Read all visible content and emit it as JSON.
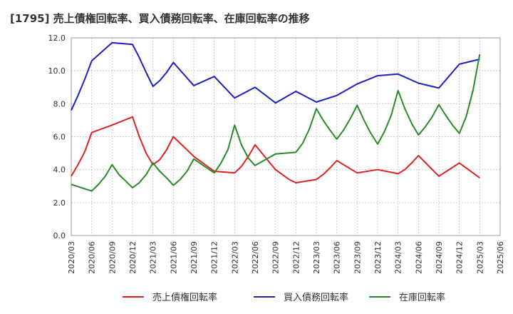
{
  "chart_data": {
    "type": "line",
    "title": "[1795]  売上債権回転率、買入債務回転率、在庫回転率の推移",
    "xlabel": "",
    "ylabel": "",
    "ylim": [
      0,
      12
    ],
    "yticks": [
      "0.0",
      "2.0",
      "4.0",
      "6.0",
      "8.0",
      "10.0",
      "12.0"
    ],
    "x": [
      "2020/03",
      "2020/06",
      "2020/09",
      "2020/12",
      "2021/03",
      "2021/06",
      "2021/09",
      "2021/12",
      "2022/03",
      "2022/06",
      "2022/09",
      "2022/12",
      "2023/03",
      "2023/06",
      "2023/09",
      "2023/12",
      "2024/03",
      "2024/06",
      "2024/09",
      "2024/12",
      "2025/03",
      "2025/06"
    ],
    "legend_position": "bottom",
    "series": [
      {
        "name": "売上債権回転率",
        "color": "#dd2222",
        "points": [
          [
            0,
            3.6
          ],
          [
            0.333,
            4.3
          ],
          [
            0.667,
            5.1
          ],
          [
            1,
            6.25
          ],
          [
            2,
            6.7
          ],
          [
            3,
            7.2
          ],
          [
            3.333,
            6.0
          ],
          [
            3.667,
            5.0
          ],
          [
            4,
            4.3
          ],
          [
            4.333,
            4.6
          ],
          [
            4.667,
            5.2
          ],
          [
            5,
            6.0
          ],
          [
            6,
            4.8
          ],
          [
            7,
            3.9
          ],
          [
            8,
            3.8
          ],
          [
            8.333,
            4.2
          ],
          [
            8.667,
            4.8
          ],
          [
            9,
            5.5
          ],
          [
            10,
            4.0
          ],
          [
            10.333,
            3.7
          ],
          [
            10.667,
            3.4
          ],
          [
            11,
            3.2
          ],
          [
            12,
            3.4
          ],
          [
            12.333,
            3.7
          ],
          [
            12.667,
            4.1
          ],
          [
            13,
            4.55
          ],
          [
            14,
            3.8
          ],
          [
            15,
            4.0
          ],
          [
            16,
            3.75
          ],
          [
            16.333,
            4.0
          ],
          [
            16.667,
            4.4
          ],
          [
            17,
            4.85
          ],
          [
            18,
            3.6
          ],
          [
            19,
            4.4
          ],
          [
            20,
            3.5
          ]
        ]
      },
      {
        "name": "買入債務回転率",
        "color": "#1f1fbf",
        "points": [
          [
            0,
            7.6
          ],
          [
            0.333,
            8.5
          ],
          [
            0.667,
            9.5
          ],
          [
            1,
            10.6
          ],
          [
            2,
            11.7
          ],
          [
            3,
            11.6
          ],
          [
            3.333,
            10.8
          ],
          [
            3.667,
            9.9
          ],
          [
            4,
            9.05
          ],
          [
            4.333,
            9.4
          ],
          [
            4.667,
            9.9
          ],
          [
            5,
            10.5
          ],
          [
            6,
            9.1
          ],
          [
            7,
            9.65
          ],
          [
            8,
            8.35
          ],
          [
            9,
            9.0
          ],
          [
            10,
            8.05
          ],
          [
            11,
            8.75
          ],
          [
            12,
            8.1
          ],
          [
            13,
            8.5
          ],
          [
            14,
            9.2
          ],
          [
            15,
            9.7
          ],
          [
            16,
            9.8
          ],
          [
            17,
            9.25
          ],
          [
            18,
            8.95
          ],
          [
            19,
            10.4
          ],
          [
            20,
            10.7
          ]
        ]
      },
      {
        "name": "在庫回転率",
        "color": "#2a8a2a",
        "points": [
          [
            0,
            3.1
          ],
          [
            1,
            2.7
          ],
          [
            1.333,
            3.1
          ],
          [
            1.667,
            3.6
          ],
          [
            2,
            4.3
          ],
          [
            2.333,
            3.7
          ],
          [
            2.667,
            3.3
          ],
          [
            3,
            2.9
          ],
          [
            3.333,
            3.2
          ],
          [
            3.667,
            3.7
          ],
          [
            4,
            4.4
          ],
          [
            4.333,
            3.9
          ],
          [
            4.667,
            3.5
          ],
          [
            5,
            3.05
          ],
          [
            5.333,
            3.4
          ],
          [
            5.667,
            3.9
          ],
          [
            6,
            4.65
          ],
          [
            7,
            3.8
          ],
          [
            7.333,
            4.4
          ],
          [
            7.667,
            5.2
          ],
          [
            8,
            6.7
          ],
          [
            8.333,
            5.5
          ],
          [
            8.667,
            4.7
          ],
          [
            9,
            4.25
          ],
          [
            10,
            4.95
          ],
          [
            11,
            5.05
          ],
          [
            11.333,
            5.6
          ],
          [
            11.667,
            6.5
          ],
          [
            12,
            7.7
          ],
          [
            12.333,
            7.0
          ],
          [
            12.667,
            6.4
          ],
          [
            13,
            5.85
          ],
          [
            13.333,
            6.4
          ],
          [
            13.667,
            7.1
          ],
          [
            14,
            7.9
          ],
          [
            14.333,
            7.0
          ],
          [
            14.667,
            6.2
          ],
          [
            15,
            5.55
          ],
          [
            15.333,
            6.3
          ],
          [
            15.667,
            7.3
          ],
          [
            16,
            8.8
          ],
          [
            16.333,
            7.7
          ],
          [
            16.667,
            6.8
          ],
          [
            17,
            6.1
          ],
          [
            17.333,
            6.6
          ],
          [
            17.667,
            7.2
          ],
          [
            18,
            7.95
          ],
          [
            18.333,
            7.3
          ],
          [
            18.667,
            6.7
          ],
          [
            19,
            6.2
          ],
          [
            19.333,
            7.2
          ],
          [
            19.667,
            8.8
          ],
          [
            20,
            11.0
          ]
        ]
      }
    ]
  }
}
